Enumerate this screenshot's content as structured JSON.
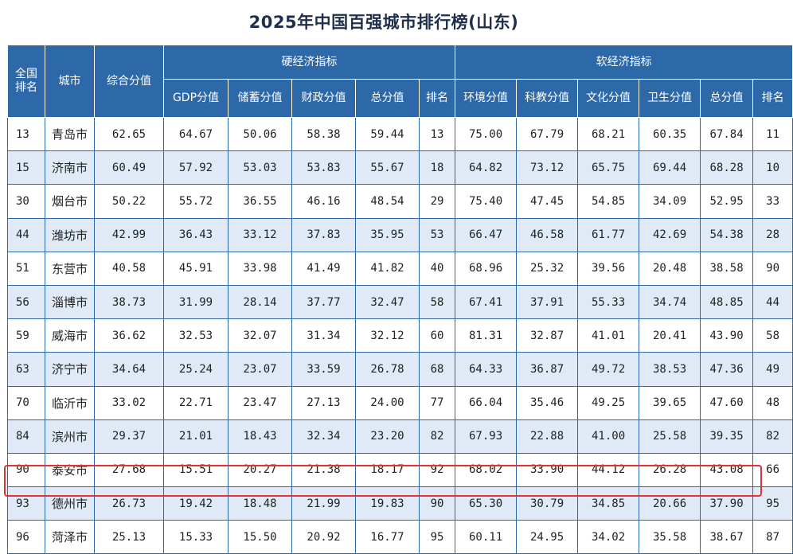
{
  "title": "2025年中国百强城市排行榜(山东)",
  "header": {
    "national_rank": "全国排名",
    "city": "城市",
    "overall": "综合分值",
    "hard_group": "硬经济指标",
    "soft_group": "软经济指标",
    "hard_cols": [
      "GDP分值",
      "储蓄分值",
      "财政分值",
      "总分值",
      "排名"
    ],
    "soft_cols": [
      "环境分值",
      "科教分值",
      "文化分值",
      "卫生分值",
      "总分值",
      "排名"
    ]
  },
  "rows": [
    {
      "nat": "13",
      "city": "青岛市",
      "overall": "62.65",
      "gdp": "64.67",
      "savings": "50.06",
      "fiscal": "58.38",
      "hard_total": "59.44",
      "hard_rank": "13",
      "env": "75.00",
      "edu": "67.79",
      "culture": "68.21",
      "health": "60.35",
      "soft_total": "67.84",
      "soft_rank": "11"
    },
    {
      "nat": "15",
      "city": "济南市",
      "overall": "60.49",
      "gdp": "57.92",
      "savings": "53.03",
      "fiscal": "53.83",
      "hard_total": "55.67",
      "hard_rank": "18",
      "env": "64.82",
      "edu": "73.12",
      "culture": "65.75",
      "health": "69.44",
      "soft_total": "68.28",
      "soft_rank": "10"
    },
    {
      "nat": "30",
      "city": "烟台市",
      "overall": "50.22",
      "gdp": "55.72",
      "savings": "36.55",
      "fiscal": "46.16",
      "hard_total": "48.54",
      "hard_rank": "29",
      "env": "75.40",
      "edu": "47.45",
      "culture": "54.85",
      "health": "34.09",
      "soft_total": "52.95",
      "soft_rank": "33"
    },
    {
      "nat": "44",
      "city": "潍坊市",
      "overall": "42.99",
      "gdp": "36.43",
      "savings": "33.12",
      "fiscal": "37.83",
      "hard_total": "35.95",
      "hard_rank": "53",
      "env": "66.47",
      "edu": "46.58",
      "culture": "61.77",
      "health": "42.69",
      "soft_total": "54.38",
      "soft_rank": "28"
    },
    {
      "nat": "51",
      "city": "东营市",
      "overall": "40.58",
      "gdp": "45.91",
      "savings": "33.98",
      "fiscal": "41.49",
      "hard_total": "41.82",
      "hard_rank": "40",
      "env": "68.96",
      "edu": "25.32",
      "culture": "39.56",
      "health": "20.48",
      "soft_total": "38.58",
      "soft_rank": "90"
    },
    {
      "nat": "56",
      "city": "淄博市",
      "overall": "38.73",
      "gdp": "31.99",
      "savings": "28.14",
      "fiscal": "37.77",
      "hard_total": "32.47",
      "hard_rank": "58",
      "env": "67.41",
      "edu": "37.91",
      "culture": "55.33",
      "health": "34.74",
      "soft_total": "48.85",
      "soft_rank": "44"
    },
    {
      "nat": "59",
      "city": "威海市",
      "overall": "36.62",
      "gdp": "32.53",
      "savings": "32.07",
      "fiscal": "31.34",
      "hard_total": "32.12",
      "hard_rank": "60",
      "env": "81.31",
      "edu": "32.87",
      "culture": "41.01",
      "health": "20.41",
      "soft_total": "43.90",
      "soft_rank": "58"
    },
    {
      "nat": "63",
      "city": "济宁市",
      "overall": "34.64",
      "gdp": "25.24",
      "savings": "23.07",
      "fiscal": "33.59",
      "hard_total": "26.78",
      "hard_rank": "68",
      "env": "64.33",
      "edu": "36.87",
      "culture": "49.72",
      "health": "38.53",
      "soft_total": "47.36",
      "soft_rank": "49"
    },
    {
      "nat": "70",
      "city": "临沂市",
      "overall": "33.02",
      "gdp": "22.71",
      "savings": "23.47",
      "fiscal": "27.13",
      "hard_total": "24.00",
      "hard_rank": "77",
      "env": "66.04",
      "edu": "35.46",
      "culture": "49.25",
      "health": "39.65",
      "soft_total": "47.60",
      "soft_rank": "48"
    },
    {
      "nat": "84",
      "city": "滨州市",
      "overall": "29.37",
      "gdp": "21.01",
      "savings": "18.43",
      "fiscal": "32.34",
      "hard_total": "23.20",
      "hard_rank": "82",
      "env": "67.93",
      "edu": "22.88",
      "culture": "41.00",
      "health": "25.58",
      "soft_total": "39.35",
      "soft_rank": "82"
    },
    {
      "nat": "90",
      "city": "泰安市",
      "overall": "27.68",
      "gdp": "15.51",
      "savings": "20.27",
      "fiscal": "21.38",
      "hard_total": "18.17",
      "hard_rank": "92",
      "env": "68.02",
      "edu": "33.90",
      "culture": "44.12",
      "health": "26.28",
      "soft_total": "43.08",
      "soft_rank": "66"
    },
    {
      "nat": "93",
      "city": "德州市",
      "overall": "26.73",
      "gdp": "19.42",
      "savings": "18.48",
      "fiscal": "21.99",
      "hard_total": "19.83",
      "hard_rank": "90",
      "env": "65.30",
      "edu": "30.79",
      "culture": "34.85",
      "health": "20.66",
      "soft_total": "37.90",
      "soft_rank": "95"
    },
    {
      "nat": "96",
      "city": "菏泽市",
      "overall": "25.13",
      "gdp": "15.33",
      "savings": "15.50",
      "fiscal": "20.92",
      "hard_total": "16.77",
      "hard_rank": "95",
      "env": "60.11",
      "edu": "24.95",
      "culture": "34.02",
      "health": "35.58",
      "soft_total": "38.67",
      "soft_rank": "87"
    }
  ],
  "colors": {
    "header_bg": "#2d68a8",
    "stripe_bg": "#dfeaf6",
    "highlight_border": "#e03232",
    "title_color": "#1f2f4a"
  }
}
